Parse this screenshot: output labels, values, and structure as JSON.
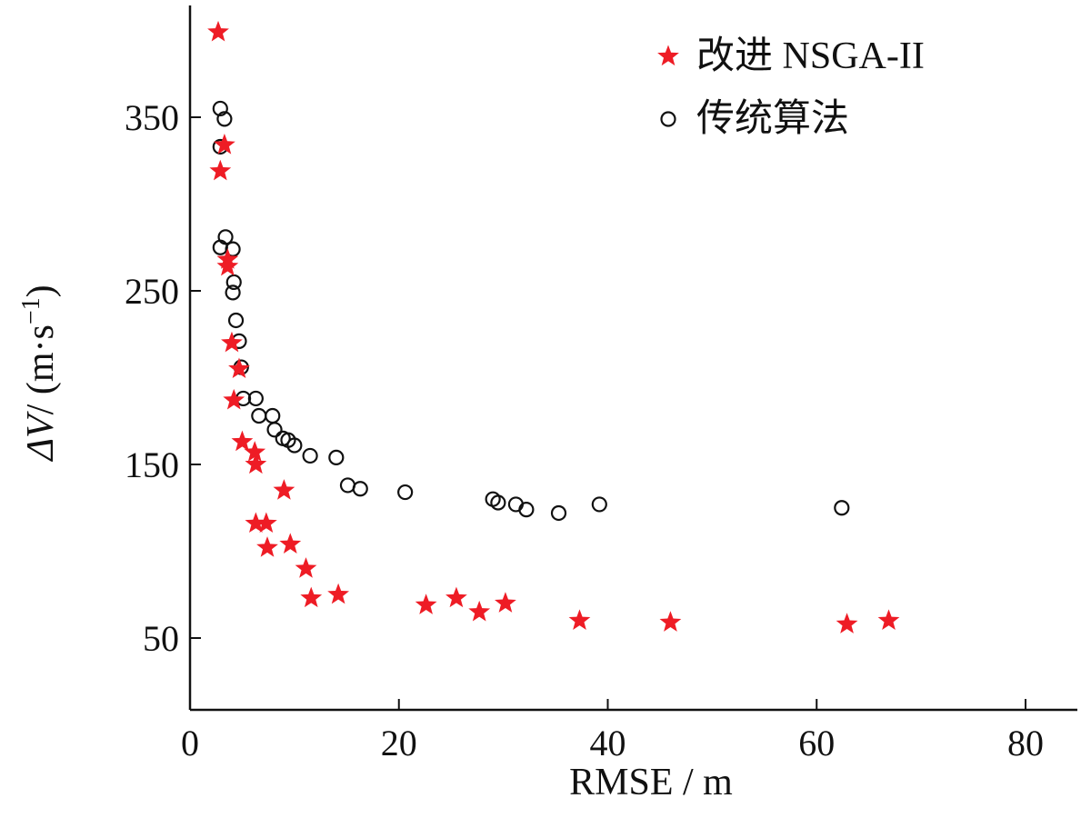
{
  "chart_data": {
    "type": "scatter",
    "xlabel": "RMSE / m",
    "ylabel_parts": {
      "symbol": "ΔV",
      "sep": "/ (m·s",
      "exp": "−1",
      "close": ")"
    },
    "xlim": [
      0,
      85
    ],
    "ylim": [
      8,
      408
    ],
    "xticks": [
      0,
      20,
      40,
      60,
      80
    ],
    "yticks": [
      50,
      150,
      250,
      350
    ],
    "legend_position": "top-right",
    "series": [
      {
        "name": "改进 NSGA-II",
        "marker": "star",
        "color": "#ee1c25",
        "points": [
          [
            2.7,
            399
          ],
          [
            3.3,
            334
          ],
          [
            2.9,
            319
          ],
          [
            3.6,
            268
          ],
          [
            3.6,
            264
          ],
          [
            4.0,
            220
          ],
          [
            4.7,
            205
          ],
          [
            4.2,
            187
          ],
          [
            5.0,
            163
          ],
          [
            6.2,
            157
          ],
          [
            6.3,
            150
          ],
          [
            9.0,
            135
          ],
          [
            6.3,
            116
          ],
          [
            7.3,
            116
          ],
          [
            7.4,
            102
          ],
          [
            9.6,
            104
          ],
          [
            11.1,
            90
          ],
          [
            11.6,
            73
          ],
          [
            14.2,
            75
          ],
          [
            22.6,
            69
          ],
          [
            25.5,
            73
          ],
          [
            27.7,
            65
          ],
          [
            30.2,
            70
          ],
          [
            37.3,
            60
          ],
          [
            46.0,
            59
          ],
          [
            62.9,
            58
          ],
          [
            66.9,
            60
          ]
        ]
      },
      {
        "name": "传统算法",
        "marker": "circle",
        "color": "#111111",
        "points": [
          [
            2.9,
            355
          ],
          [
            3.3,
            349
          ],
          [
            2.9,
            333
          ],
          [
            3.4,
            281
          ],
          [
            2.9,
            275
          ],
          [
            4.1,
            274
          ],
          [
            4.2,
            255
          ],
          [
            4.1,
            249
          ],
          [
            4.4,
            233
          ],
          [
            4.7,
            221
          ],
          [
            4.9,
            206
          ],
          [
            5.1,
            188
          ],
          [
            6.3,
            188
          ],
          [
            6.6,
            178
          ],
          [
            7.9,
            178
          ],
          [
            8.1,
            170
          ],
          [
            8.9,
            165
          ],
          [
            9.4,
            164
          ],
          [
            10.0,
            161
          ],
          [
            11.5,
            155
          ],
          [
            14.0,
            154
          ],
          [
            15.1,
            138
          ],
          [
            16.3,
            136
          ],
          [
            20.6,
            134
          ],
          [
            29.0,
            130
          ],
          [
            29.5,
            128
          ],
          [
            31.2,
            127
          ],
          [
            32.2,
            124
          ],
          [
            35.3,
            122
          ],
          [
            39.2,
            127
          ],
          [
            62.4,
            125
          ]
        ]
      }
    ]
  }
}
